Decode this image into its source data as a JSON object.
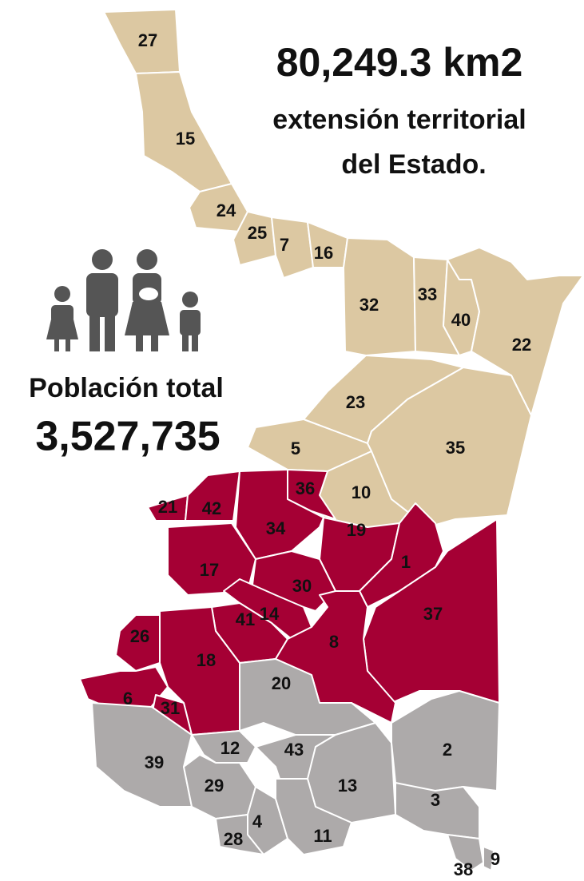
{
  "header": {
    "area": "80,249.3 km2",
    "area_caption_1": "extensión territorial",
    "area_caption_2": "del Estado.",
    "population_label": "Población total",
    "population": "3,527,735"
  },
  "regions": [
    {
      "label": "27",
      "color": "#dcc8a2"
    },
    {
      "label": "15",
      "color": "#dcc8a2"
    },
    {
      "label": "24",
      "color": "#dcc8a2"
    },
    {
      "label": "25",
      "color": "#dcc8a2"
    },
    {
      "label": "7",
      "color": "#dcc8a2"
    },
    {
      "label": "16",
      "color": "#dcc8a2"
    },
    {
      "label": "32",
      "color": "#dcc8a2"
    },
    {
      "label": "33",
      "color": "#dcc8a2"
    },
    {
      "label": "40",
      "color": "#dcc8a2"
    },
    {
      "label": "22",
      "color": "#dcc8a2"
    },
    {
      "label": "23",
      "color": "#dcc8a2"
    },
    {
      "label": "35",
      "color": "#dcc8a2"
    },
    {
      "label": "5",
      "color": "#dcc8a2"
    },
    {
      "label": "10",
      "color": "#dcc8a2"
    },
    {
      "label": "36",
      "color": "#a50034"
    },
    {
      "label": "21",
      "color": "#a50034"
    },
    {
      "label": "42",
      "color": "#a50034"
    },
    {
      "label": "34",
      "color": "#a50034"
    },
    {
      "label": "19",
      "color": "#a50034"
    },
    {
      "label": "1",
      "color": "#a50034"
    },
    {
      "label": "17",
      "color": "#a50034"
    },
    {
      "label": "30",
      "color": "#a50034"
    },
    {
      "label": "14",
      "color": "#a50034"
    },
    {
      "label": "41",
      "color": "#a50034"
    },
    {
      "label": "37",
      "color": "#a50034"
    },
    {
      "label": "8",
      "color": "#a50034"
    },
    {
      "label": "26",
      "color": "#a50034"
    },
    {
      "label": "18",
      "color": "#a50034"
    },
    {
      "label": "6",
      "color": "#a50034"
    },
    {
      "label": "31",
      "color": "#a50034"
    },
    {
      "label": "20",
      "color": "#adaaaa"
    },
    {
      "label": "39",
      "color": "#adaaaa"
    },
    {
      "label": "12",
      "color": "#adaaaa"
    },
    {
      "label": "43",
      "color": "#adaaaa"
    },
    {
      "label": "13",
      "color": "#adaaaa"
    },
    {
      "label": "2",
      "color": "#adaaaa"
    },
    {
      "label": "29",
      "color": "#adaaaa"
    },
    {
      "label": "4",
      "color": "#adaaaa"
    },
    {
      "label": "28",
      "color": "#adaaaa"
    },
    {
      "label": "11",
      "color": "#adaaaa"
    },
    {
      "label": "3",
      "color": "#adaaaa"
    },
    {
      "label": "38",
      "color": "#adaaaa"
    },
    {
      "label": "9",
      "color": "#adaaaa"
    }
  ]
}
